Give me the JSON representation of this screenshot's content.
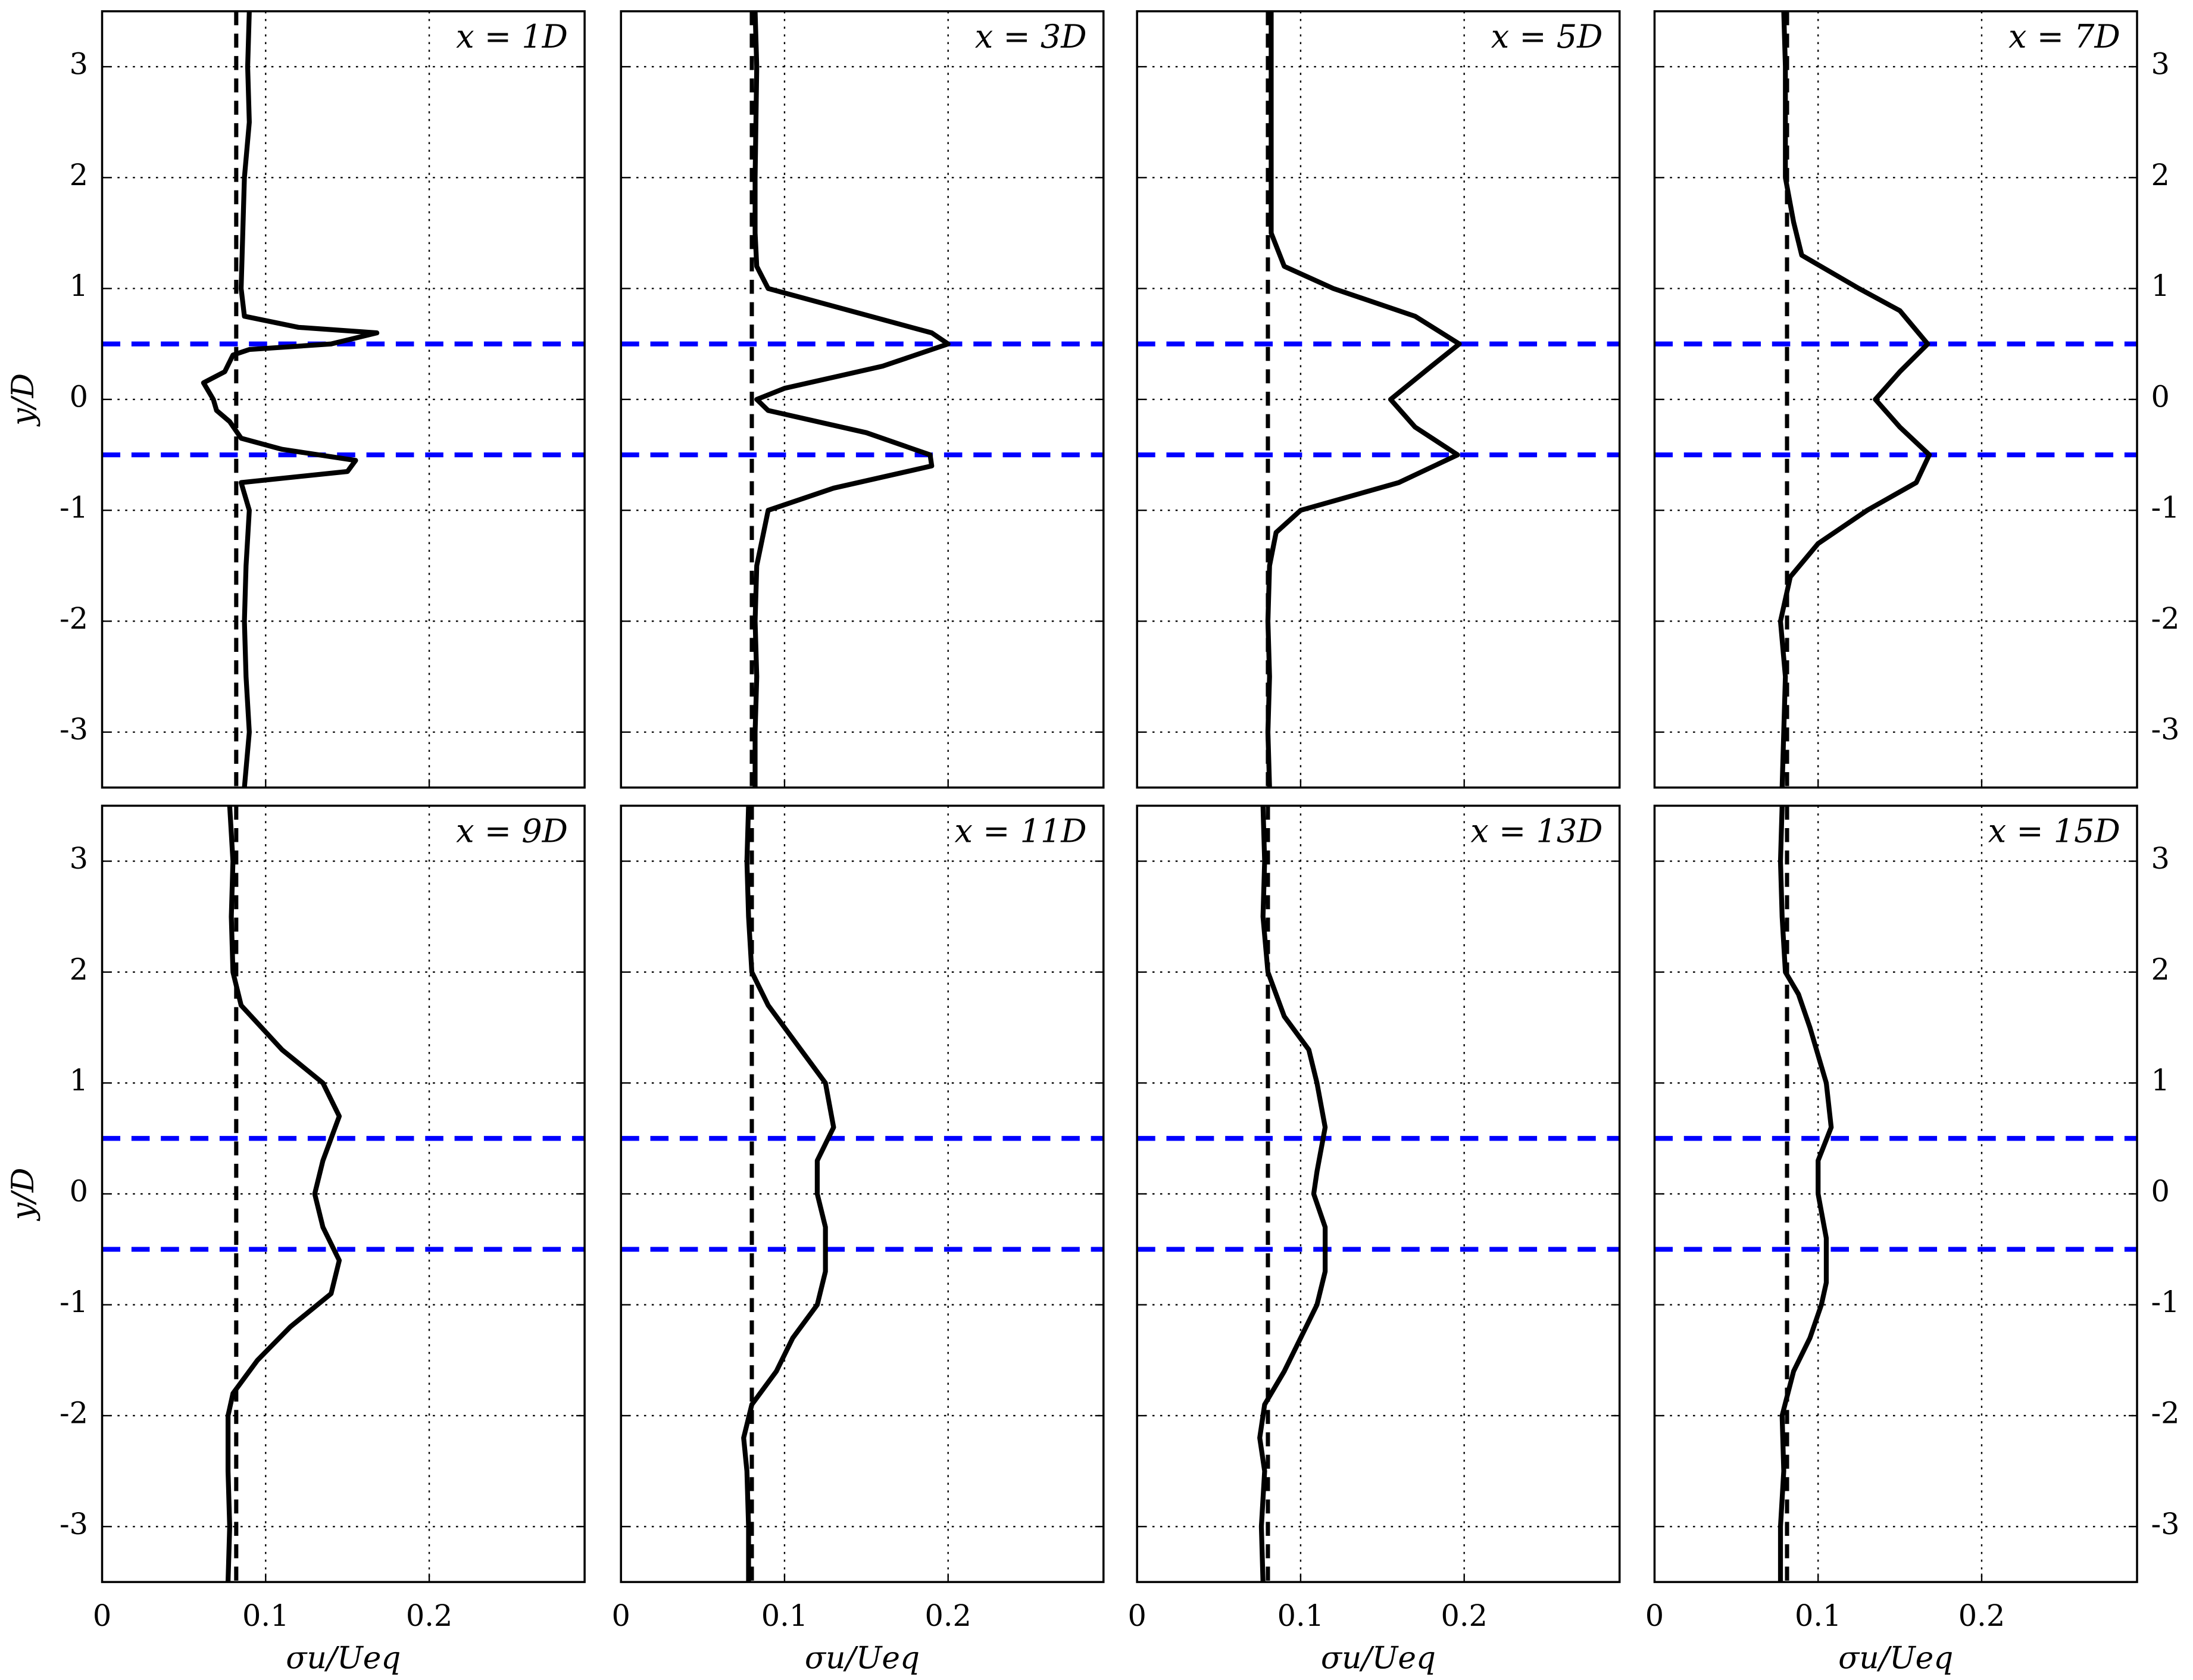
{
  "chart_data": [
    {
      "type": "line",
      "title": "x = 1D",
      "ylabel": "y/D",
      "ytick_labels": "left",
      "xtick_labels": false,
      "xlim": [
        0,
        0.295
      ],
      "ylim": [
        -3.5,
        3.5
      ],
      "xticks": [
        0,
        0.1,
        0.2
      ],
      "yticks": [
        -3,
        -2,
        -1,
        0,
        1,
        2,
        3
      ],
      "grid": true,
      "series": [
        {
          "color": "#000000",
          "x": [
            0.09,
            0.089,
            0.09,
            0.087,
            0.086,
            0.085,
            0.087,
            0.12,
            0.168,
            0.14,
            0.09,
            0.08,
            0.075,
            0.062,
            0.068,
            0.07,
            0.078,
            0.085,
            0.11,
            0.155,
            0.15,
            0.085,
            0.09,
            0.088,
            0.087,
            0.088,
            0.09,
            0.087
          ],
          "y": [
            3.5,
            3,
            2.5,
            2,
            1.5,
            1,
            0.75,
            0.65,
            0.6,
            0.5,
            0.45,
            0.4,
            0.25,
            0.15,
            0,
            -0.1,
            -0.2,
            -0.35,
            -0.45,
            -0.55,
            -0.65,
            -0.75,
            -1,
            -1.5,
            -2,
            -2.5,
            -3,
            -3.5
          ]
        }
      ],
      "vline": {
        "x": 0.082,
        "color": "#000000"
      },
      "hlines": {
        "y": [
          -0.5,
          0.5
        ],
        "color": "#0000ff"
      }
    },
    {
      "type": "line",
      "title": "x = 3D",
      "ytick_labels": "none",
      "xtick_labels": false,
      "xlim": [
        0,
        0.295
      ],
      "ylim": [
        -3.5,
        3.5
      ],
      "xticks": [
        0,
        0.1,
        0.2
      ],
      "yticks": [
        -3,
        -2,
        -1,
        0,
        1,
        2,
        3
      ],
      "grid": true,
      "series": [
        {
          "color": "#000000",
          "x": [
            0.082,
            0.083,
            0.082,
            0.082,
            0.083,
            0.09,
            0.14,
            0.19,
            0.2,
            0.16,
            0.1,
            0.083,
            0.09,
            0.15,
            0.189,
            0.19,
            0.13,
            0.09,
            0.083,
            0.082,
            0.083,
            0.082,
            0.082
          ],
          "y": [
            3.5,
            3,
            2,
            1.5,
            1.2,
            1,
            0.8,
            0.6,
            0.5,
            0.3,
            0.1,
            0,
            -0.1,
            -0.3,
            -0.5,
            -0.6,
            -0.8,
            -1,
            -1.5,
            -2,
            -2.5,
            -3,
            -3.5
          ]
        }
      ],
      "vline": {
        "x": 0.08,
        "color": "#000000"
      },
      "hlines": {
        "y": [
          -0.5,
          0.5
        ],
        "color": "#0000ff"
      }
    },
    {
      "type": "line",
      "title": "x = 5D",
      "ytick_labels": "none",
      "xtick_labels": false,
      "xlim": [
        0,
        0.295
      ],
      "ylim": [
        -3.5,
        3.5
      ],
      "xticks": [
        0,
        0.1,
        0.2
      ],
      "yticks": [
        -3,
        -2,
        -1,
        0,
        1,
        2,
        3
      ],
      "grid": true,
      "series": [
        {
          "color": "#000000",
          "x": [
            0.082,
            0.082,
            0.082,
            0.082,
            0.09,
            0.12,
            0.17,
            0.197,
            0.18,
            0.155,
            0.17,
            0.196,
            0.16,
            0.1,
            0.085,
            0.081,
            0.08,
            0.081,
            0.08,
            0.081
          ],
          "y": [
            3.5,
            3,
            2,
            1.5,
            1.2,
            1,
            0.75,
            0.5,
            0.3,
            0,
            -0.25,
            -0.5,
            -0.75,
            -1,
            -1.2,
            -1.5,
            -2,
            -2.5,
            -3,
            -3.5
          ]
        }
      ],
      "vline": {
        "x": 0.08,
        "color": "#000000"
      },
      "hlines": {
        "y": [
          -0.5,
          0.5
        ],
        "color": "#0000ff"
      }
    },
    {
      "type": "line",
      "title": "x = 7D",
      "ytick_labels": "right",
      "xtick_labels": false,
      "xlim": [
        0,
        0.295
      ],
      "ylim": [
        -3.5,
        3.5
      ],
      "xticks": [
        0,
        0.1,
        0.2
      ],
      "yticks": [
        -3,
        -2,
        -1,
        0,
        1,
        2,
        3
      ],
      "grid": true,
      "series": [
        {
          "color": "#000000",
          "x": [
            0.079,
            0.08,
            0.08,
            0.08,
            0.085,
            0.09,
            0.125,
            0.15,
            0.167,
            0.15,
            0.135,
            0.15,
            0.168,
            0.16,
            0.13,
            0.1,
            0.083,
            0.077,
            0.08,
            0.079,
            0.078
          ],
          "y": [
            3.5,
            3,
            2.5,
            2,
            1.6,
            1.3,
            1,
            0.8,
            0.5,
            0.25,
            0,
            -0.25,
            -0.5,
            -0.75,
            -1,
            -1.3,
            -1.6,
            -2,
            -2.5,
            -3,
            -3.5
          ]
        }
      ],
      "vline": {
        "x": 0.081,
        "color": "#000000"
      },
      "hlines": {
        "y": [
          -0.5,
          0.5
        ],
        "color": "#0000ff"
      }
    },
    {
      "type": "line",
      "title": "x = 9D",
      "ylabel": "y/D",
      "xlabel": "σu/Ueq",
      "ytick_labels": "left",
      "xtick_labels": true,
      "xlim": [
        0,
        0.295
      ],
      "ylim": [
        -3.5,
        3.5
      ],
      "xticks": [
        0,
        0.1,
        0.2
      ],
      "yticks": [
        -3,
        -2,
        -1,
        0,
        1,
        2,
        3
      ],
      "grid": true,
      "series": [
        {
          "color": "#000000",
          "x": [
            0.078,
            0.08,
            0.079,
            0.08,
            0.085,
            0.11,
            0.135,
            0.145,
            0.135,
            0.13,
            0.135,
            0.145,
            0.14,
            0.115,
            0.095,
            0.08,
            0.077,
            0.077,
            0.078,
            0.077
          ],
          "y": [
            3.5,
            3,
            2.5,
            2,
            1.7,
            1.3,
            1,
            0.7,
            0.3,
            0,
            -0.3,
            -0.6,
            -0.9,
            -1.2,
            -1.5,
            -1.8,
            -2,
            -2.5,
            -3,
            -3.5
          ]
        }
      ],
      "vline": {
        "x": 0.082,
        "color": "#000000"
      },
      "hlines": {
        "y": [
          -0.5,
          0.5
        ],
        "color": "#0000ff"
      }
    },
    {
      "type": "line",
      "title": "x = 11D",
      "xlabel": "σu/Ueq",
      "ytick_labels": "none",
      "xtick_labels": true,
      "xlim": [
        0,
        0.295
      ],
      "ylim": [
        -3.5,
        3.5
      ],
      "xticks": [
        0,
        0.1,
        0.2
      ],
      "yticks": [
        -3,
        -2,
        -1,
        0,
        1,
        2,
        3
      ],
      "grid": true,
      "series": [
        {
          "color": "#000000",
          "x": [
            0.078,
            0.077,
            0.078,
            0.08,
            0.09,
            0.11,
            0.125,
            0.13,
            0.12,
            0.12,
            0.125,
            0.125,
            0.12,
            0.105,
            0.095,
            0.08,
            0.075,
            0.077,
            0.078,
            0.078
          ],
          "y": [
            3.5,
            3,
            2.5,
            2,
            1.7,
            1.3,
            1,
            0.6,
            0.3,
            0,
            -0.3,
            -0.7,
            -1,
            -1.3,
            -1.6,
            -1.9,
            -2.2,
            -2.5,
            -3,
            -3.5
          ]
        }
      ],
      "vline": {
        "x": 0.08,
        "color": "#000000"
      },
      "hlines": {
        "y": [
          -0.5,
          0.5
        ],
        "color": "#0000ff"
      }
    },
    {
      "type": "line",
      "title": "x = 13D",
      "xlabel": "σu/Ueq",
      "ytick_labels": "none",
      "xtick_labels": true,
      "xlim": [
        0,
        0.295
      ],
      "ylim": [
        -3.5,
        3.5
      ],
      "xticks": [
        0,
        0.1,
        0.2
      ],
      "yticks": [
        -3,
        -2,
        -1,
        0,
        1,
        2,
        3
      ],
      "grid": true,
      "series": [
        {
          "color": "#000000",
          "x": [
            0.077,
            0.078,
            0.077,
            0.08,
            0.09,
            0.105,
            0.11,
            0.115,
            0.11,
            0.108,
            0.115,
            0.115,
            0.11,
            0.1,
            0.09,
            0.078,
            0.075,
            0.078,
            0.076,
            0.077
          ],
          "y": [
            3.5,
            3,
            2.5,
            2,
            1.6,
            1.3,
            1,
            0.6,
            0.2,
            0,
            -0.3,
            -0.7,
            -1,
            -1.3,
            -1.6,
            -1.9,
            -2.2,
            -2.5,
            -3,
            -3.5
          ]
        }
      ],
      "vline": {
        "x": 0.08,
        "color": "#000000"
      },
      "hlines": {
        "y": [
          -0.5,
          0.5
        ],
        "color": "#0000ff"
      }
    },
    {
      "type": "line",
      "title": "x = 15D",
      "xlabel": "σu/Ueq",
      "ytick_labels": "right",
      "xtick_labels": true,
      "xlim": [
        0,
        0.295
      ],
      "ylim": [
        -3.5,
        3.5
      ],
      "xticks": [
        0,
        0.1,
        0.2
      ],
      "yticks": [
        -3,
        -2,
        -1,
        0,
        1,
        2,
        3
      ],
      "grid": true,
      "series": [
        {
          "color": "#000000",
          "x": [
            0.078,
            0.077,
            0.078,
            0.08,
            0.088,
            0.095,
            0.105,
            0.108,
            0.1,
            0.1,
            0.105,
            0.105,
            0.102,
            0.095,
            0.085,
            0.078,
            0.079,
            0.077,
            0.077
          ],
          "y": [
            3.5,
            3,
            2.5,
            2,
            1.8,
            1.5,
            1,
            0.6,
            0.3,
            0,
            -0.4,
            -0.8,
            -1,
            -1.3,
            -1.6,
            -2,
            -2.5,
            -3,
            -3.5
          ]
        }
      ],
      "vline": {
        "x": 0.081,
        "color": "#000000"
      },
      "hlines": {
        "y": [
          -0.5,
          0.5
        ],
        "color": "#0000ff"
      }
    }
  ]
}
